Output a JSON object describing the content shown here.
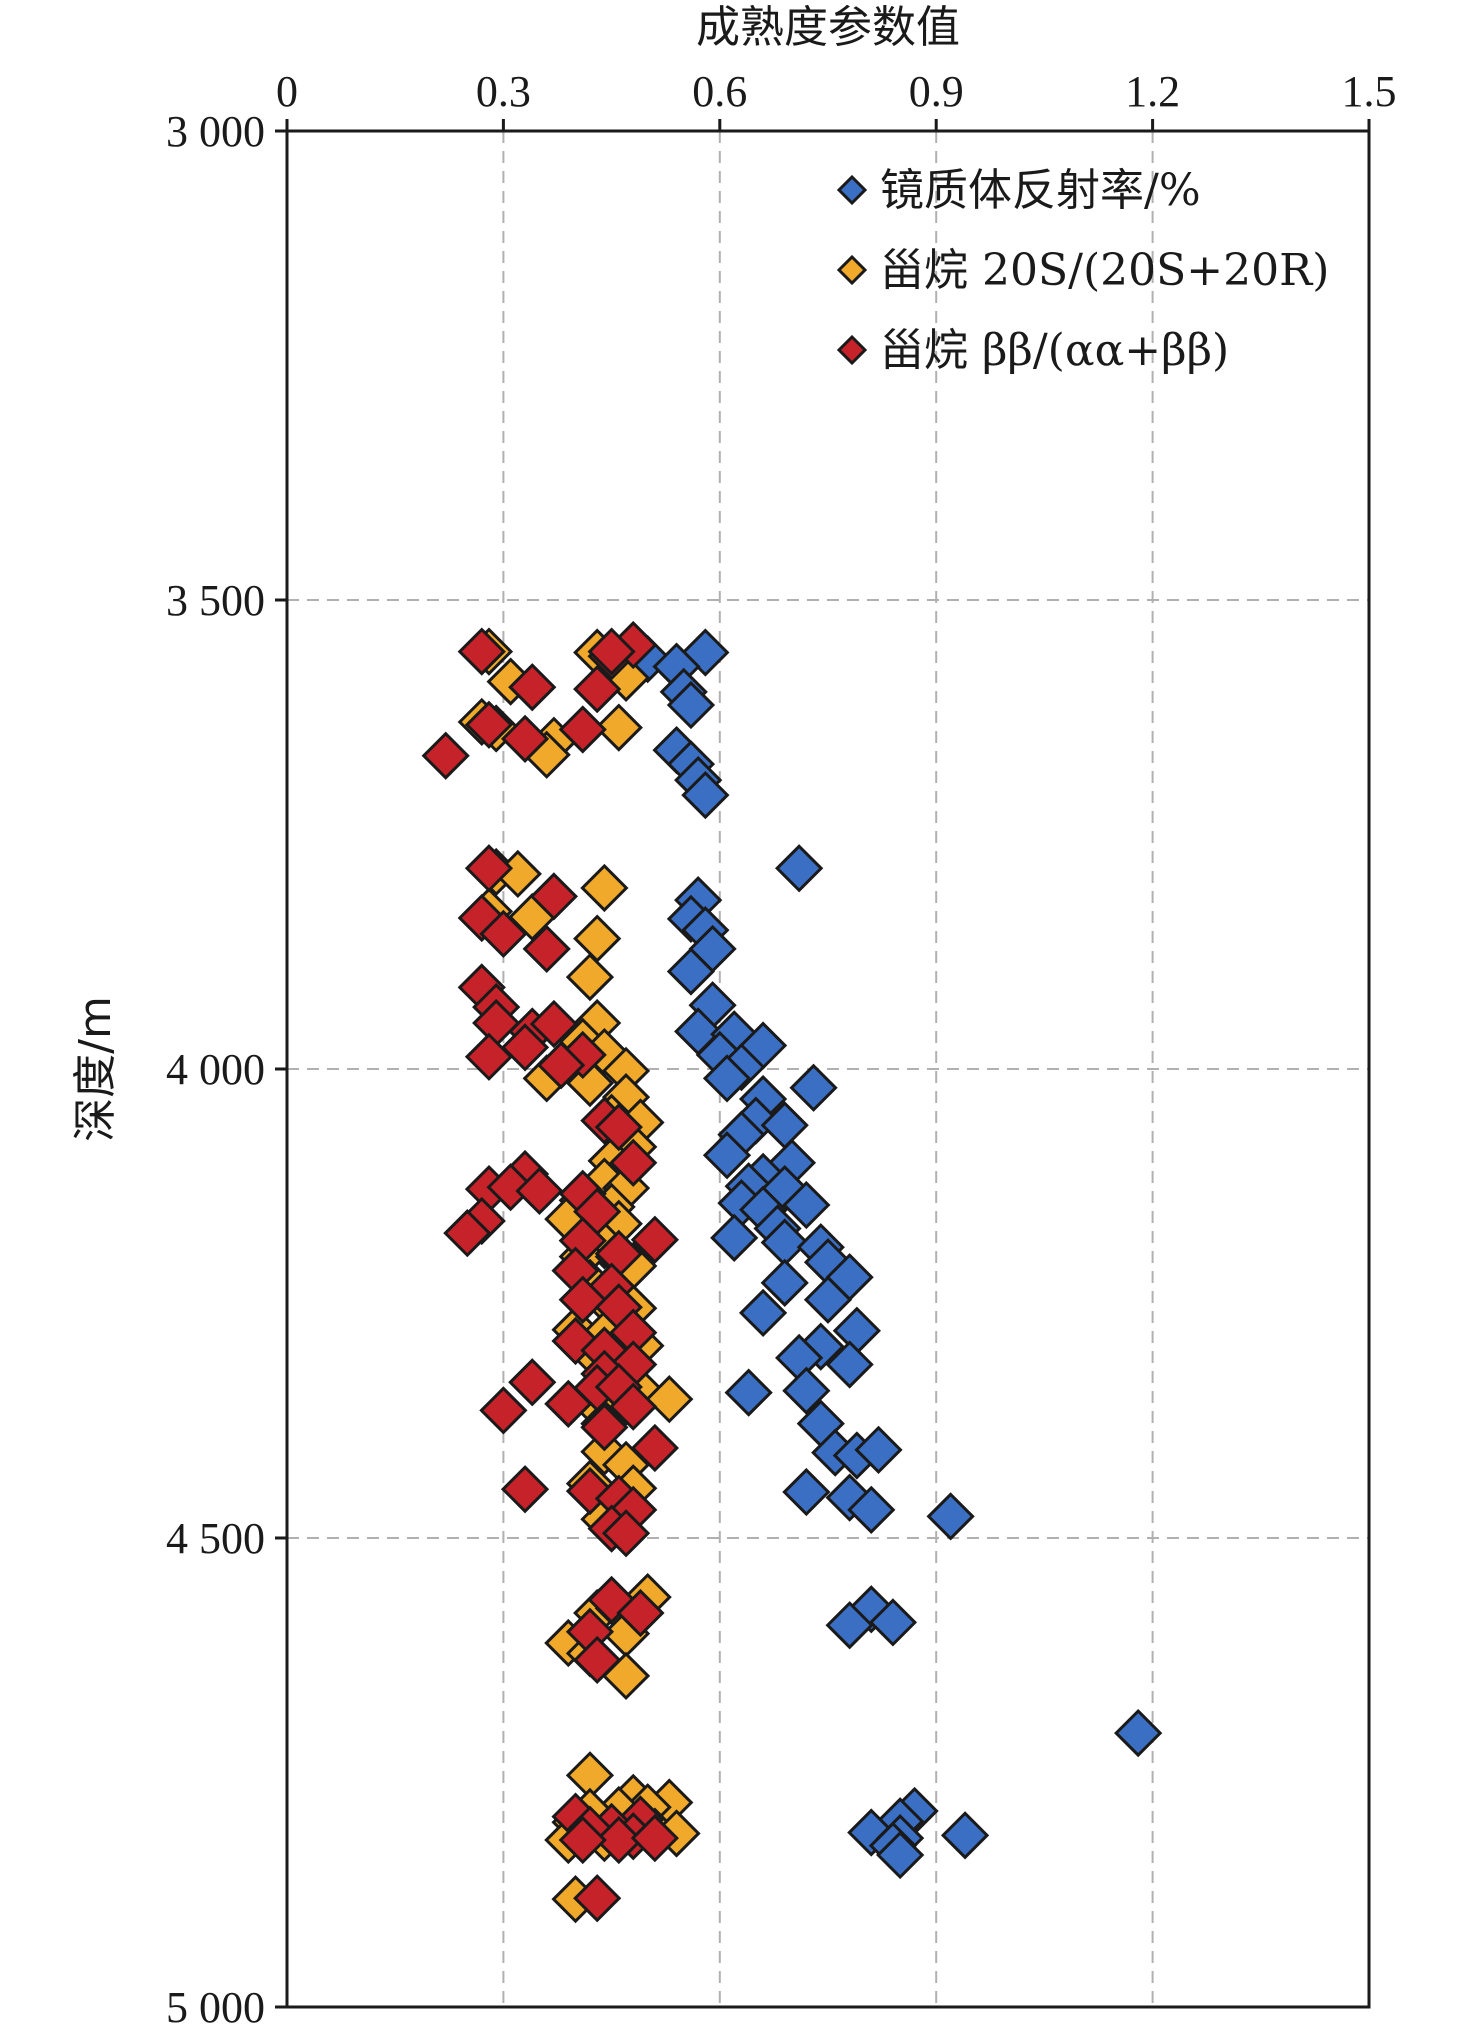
{
  "chart_data": {
    "type": "scatter",
    "xlabel": "成熟度参数值",
    "ylabel": "深度/m",
    "x_axis_position": "top",
    "y_axis_inverted": true,
    "xlim": [
      0,
      1.5
    ],
    "ylim": [
      3000,
      5000
    ],
    "x_ticks": [
      "0",
      "0.3",
      "0.6",
      "0.9",
      "1.2",
      "1.5"
    ],
    "x_tick_values": [
      0,
      0.3,
      0.6,
      0.9,
      1.2,
      1.5
    ],
    "y_ticks": [
      "3 000",
      "3 500",
      "4 000",
      "4 500",
      "5 000"
    ],
    "y_tick_values": [
      3000,
      3500,
      4000,
      4500,
      5000
    ],
    "grid": true,
    "legend_position": "top-right",
    "marker": "diamond",
    "series": [
      {
        "name": "镜质体反射率/%",
        "color": "#3a6fc4",
        "points": [
          [
            0.58,
            3556
          ],
          [
            0.5,
            3563
          ],
          [
            0.54,
            3571
          ],
          [
            0.55,
            3598
          ],
          [
            0.56,
            3612
          ],
          [
            0.54,
            3660
          ],
          [
            0.56,
            3675
          ],
          [
            0.57,
            3692
          ],
          [
            0.58,
            3708
          ],
          [
            0.71,
            3786
          ],
          [
            0.57,
            3820
          ],
          [
            0.56,
            3840
          ],
          [
            0.58,
            3852
          ],
          [
            0.59,
            3872
          ],
          [
            0.56,
            3896
          ],
          [
            0.59,
            3932
          ],
          [
            0.57,
            3960
          ],
          [
            0.62,
            3963
          ],
          [
            0.66,
            3975
          ],
          [
            0.6,
            3985
          ],
          [
            0.63,
            3998
          ],
          [
            0.73,
            4020
          ],
          [
            0.61,
            4010
          ],
          [
            0.66,
            4032
          ],
          [
            0.65,
            4055
          ],
          [
            0.69,
            4060
          ],
          [
            0.63,
            4070
          ],
          [
            0.61,
            4092
          ],
          [
            0.7,
            4100
          ],
          [
            0.66,
            4115
          ],
          [
            0.64,
            4125
          ],
          [
            0.69,
            4128
          ],
          [
            0.63,
            4143
          ],
          [
            0.72,
            4145
          ],
          [
            0.66,
            4150
          ],
          [
            0.68,
            4170
          ],
          [
            0.62,
            4180
          ],
          [
            0.69,
            4185
          ],
          [
            0.74,
            4190
          ],
          [
            0.75,
            4206
          ],
          [
            0.78,
            4222
          ],
          [
            0.69,
            4228
          ],
          [
            0.75,
            4246
          ],
          [
            0.66,
            4260
          ],
          [
            0.79,
            4279
          ],
          [
            0.74,
            4296
          ],
          [
            0.71,
            4308
          ],
          [
            0.78,
            4315
          ],
          [
            0.64,
            4345
          ],
          [
            0.72,
            4343
          ],
          [
            0.74,
            4378
          ],
          [
            0.76,
            4409
          ],
          [
            0.79,
            4412
          ],
          [
            0.82,
            4406
          ],
          [
            0.72,
            4451
          ],
          [
            0.78,
            4457
          ],
          [
            0.81,
            4470
          ],
          [
            0.92,
            4477
          ],
          [
            0.81,
            4576
          ],
          [
            0.78,
            4593
          ],
          [
            0.84,
            4590
          ],
          [
            1.18,
            4708
          ],
          [
            0.87,
            4791
          ],
          [
            0.85,
            4802
          ],
          [
            0.81,
            4814
          ],
          [
            0.85,
            4820
          ],
          [
            0.84,
            4828
          ],
          [
            0.94,
            4817
          ],
          [
            0.85,
            4838
          ]
        ]
      },
      {
        "name": "甾烷 20S/(20S+20R)",
        "color": "#f0a92a",
        "points": [
          [
            0.28,
            3555
          ],
          [
            0.45,
            3563
          ],
          [
            0.43,
            3556
          ],
          [
            0.31,
            3587
          ],
          [
            0.47,
            3583
          ],
          [
            0.29,
            3637
          ],
          [
            0.27,
            3630
          ],
          [
            0.46,
            3636
          ],
          [
            0.37,
            3650
          ],
          [
            0.36,
            3665
          ],
          [
            0.29,
            3790
          ],
          [
            0.32,
            3792
          ],
          [
            0.44,
            3807
          ],
          [
            0.28,
            3832
          ],
          [
            0.34,
            3838
          ],
          [
            0.43,
            3861
          ],
          [
            0.42,
            3902
          ],
          [
            0.43,
            3951
          ],
          [
            0.41,
            3971
          ],
          [
            0.44,
            3982
          ],
          [
            0.47,
            4002
          ],
          [
            0.36,
            4010
          ],
          [
            0.42,
            4015
          ],
          [
            0.47,
            4030
          ],
          [
            0.45,
            4052
          ],
          [
            0.49,
            4057
          ],
          [
            0.48,
            4083
          ],
          [
            0.45,
            4098
          ],
          [
            0.44,
            4120
          ],
          [
            0.47,
            4127
          ],
          [
            0.41,
            4140
          ],
          [
            0.45,
            4147
          ],
          [
            0.39,
            4160
          ],
          [
            0.46,
            4165
          ],
          [
            0.44,
            4188
          ],
          [
            0.41,
            4200
          ],
          [
            0.46,
            4200
          ],
          [
            0.48,
            4210
          ],
          [
            0.42,
            4228
          ],
          [
            0.44,
            4246
          ],
          [
            0.48,
            4255
          ],
          [
            0.4,
            4278
          ],
          [
            0.44,
            4283
          ],
          [
            0.49,
            4295
          ],
          [
            0.43,
            4308
          ],
          [
            0.47,
            4312
          ],
          [
            0.49,
            4343
          ],
          [
            0.43,
            4360
          ],
          [
            0.53,
            4352
          ],
          [
            0.44,
            4378
          ],
          [
            0.44,
            4408
          ],
          [
            0.47,
            4422
          ],
          [
            0.42,
            4442
          ],
          [
            0.48,
            4447
          ],
          [
            0.47,
            4476
          ],
          [
            0.44,
            4480
          ],
          [
            0.5,
            4563
          ],
          [
            0.43,
            4580
          ],
          [
            0.46,
            4575
          ],
          [
            0.47,
            4602
          ],
          [
            0.39,
            4612
          ],
          [
            0.42,
            4623
          ],
          [
            0.47,
            4647
          ],
          [
            0.42,
            4753
          ],
          [
            0.48,
            4777
          ],
          [
            0.53,
            4782
          ],
          [
            0.5,
            4787
          ],
          [
            0.46,
            4790
          ],
          [
            0.42,
            4792
          ],
          [
            0.4,
            4803
          ],
          [
            0.51,
            4813
          ],
          [
            0.54,
            4815
          ],
          [
            0.44,
            4820
          ],
          [
            0.39,
            4822
          ],
          [
            0.4,
            4885
          ]
        ]
      },
      {
        "name": "甾烷 ββ/(αα+ββ)",
        "color": "#c6222a",
        "points": [
          [
            0.27,
            3555
          ],
          [
            0.45,
            3560
          ],
          [
            0.48,
            3548
          ],
          [
            0.45,
            3555
          ],
          [
            0.34,
            3593
          ],
          [
            0.43,
            3595
          ],
          [
            0.28,
            3633
          ],
          [
            0.41,
            3638
          ],
          [
            0.33,
            3648
          ],
          [
            0.22,
            3666
          ],
          [
            0.28,
            3786
          ],
          [
            0.37,
            3816
          ],
          [
            0.27,
            3839
          ],
          [
            0.3,
            3856
          ],
          [
            0.36,
            3872
          ],
          [
            0.27,
            3913
          ],
          [
            0.29,
            3934
          ],
          [
            0.29,
            3951
          ],
          [
            0.34,
            3960
          ],
          [
            0.37,
            3952
          ],
          [
            0.33,
            3977
          ],
          [
            0.41,
            3985
          ],
          [
            0.38,
            3996
          ],
          [
            0.28,
            3987
          ],
          [
            0.44,
            4055
          ],
          [
            0.46,
            4062
          ],
          [
            0.48,
            4100
          ],
          [
            0.33,
            4112
          ],
          [
            0.28,
            4128
          ],
          [
            0.31,
            4126
          ],
          [
            0.41,
            4133
          ],
          [
            0.35,
            4130
          ],
          [
            0.43,
            4152
          ],
          [
            0.27,
            4162
          ],
          [
            0.25,
            4175
          ],
          [
            0.51,
            4182
          ],
          [
            0.41,
            4183
          ],
          [
            0.46,
            4197
          ],
          [
            0.4,
            4215
          ],
          [
            0.45,
            4232
          ],
          [
            0.41,
            4246
          ],
          [
            0.46,
            4254
          ],
          [
            0.48,
            4281
          ],
          [
            0.4,
            4290
          ],
          [
            0.44,
            4300
          ],
          [
            0.48,
            4315
          ],
          [
            0.44,
            4325
          ],
          [
            0.34,
            4334
          ],
          [
            0.43,
            4340
          ],
          [
            0.46,
            4339
          ],
          [
            0.39,
            4357
          ],
          [
            0.48,
            4360
          ],
          [
            0.3,
            4364
          ],
          [
            0.44,
            4382
          ],
          [
            0.51,
            4404
          ],
          [
            0.33,
            4448
          ],
          [
            0.42,
            4450
          ],
          [
            0.46,
            4458
          ],
          [
            0.48,
            4470
          ],
          [
            0.45,
            4490
          ],
          [
            0.47,
            4495
          ],
          [
            0.45,
            4566
          ],
          [
            0.49,
            4580
          ],
          [
            0.42,
            4600
          ],
          [
            0.43,
            4630
          ],
          [
            0.4,
            4797
          ],
          [
            0.49,
            4800
          ],
          [
            0.45,
            4808
          ],
          [
            0.42,
            4811
          ],
          [
            0.48,
            4818
          ],
          [
            0.46,
            4822
          ],
          [
            0.51,
            4820
          ],
          [
            0.41,
            4822
          ],
          [
            0.43,
            4884
          ]
        ]
      }
    ]
  }
}
